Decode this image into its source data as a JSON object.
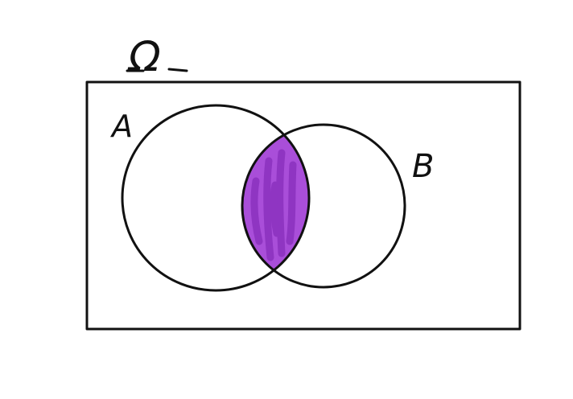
{
  "universe_label": "Ω",
  "sets": {
    "a": {
      "label": "A"
    },
    "b": {
      "label": "B"
    }
  },
  "colors": {
    "ink": "#111111",
    "intersection_fill": "#a23fd6",
    "intersection_stroke": "#7a22b0"
  },
  "highlighted_region": "intersection"
}
